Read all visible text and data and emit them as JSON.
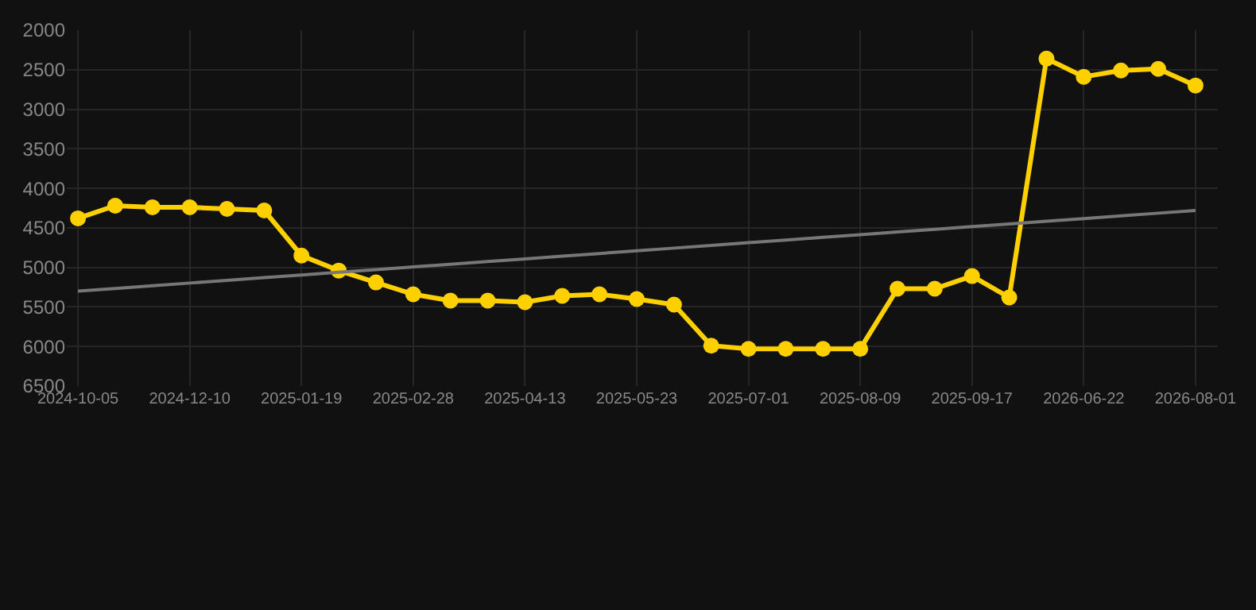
{
  "chart_data": {
    "type": "line",
    "categories": [
      "2024-10-05",
      null,
      null,
      "2024-12-10",
      null,
      null,
      "2025-01-19",
      null,
      null,
      "2025-02-28",
      null,
      null,
      "2025-04-13",
      null,
      null,
      "2025-05-23",
      null,
      null,
      "2025-07-01",
      null,
      null,
      "2025-08-09",
      null,
      null,
      "2025-09-17",
      null,
      null,
      "2026-06-22",
      null,
      null,
      "2026-08-01"
    ],
    "series": [
      {
        "color": "#ffd000",
        "marker": "circle",
        "values": [
          4380,
          4220,
          4240,
          4240,
          4260,
          4280,
          4850,
          5040,
          5190,
          5340,
          5420,
          5420,
          5440,
          5360,
          5340,
          5400,
          5470,
          5990,
          6030,
          6030,
          6030,
          6030,
          5270,
          5270,
          5110,
          5380,
          2360,
          2590,
          2510,
          2490,
          2700
        ]
      },
      {
        "type": "line",
        "color": "#777777",
        "marker": "none",
        "values": [
          5300,
          5266,
          5232,
          5198,
          5164,
          5130,
          5096,
          5062,
          5028,
          4994,
          4960,
          4926,
          4892,
          4858,
          4824,
          4790,
          4756,
          4722,
          4688,
          4654,
          4620,
          4586,
          4552,
          4518,
          4484,
          4450,
          4416,
          4382,
          4348,
          4314,
          4280
        ]
      }
    ],
    "ylim": [
      6500,
      2000
    ],
    "yticks": [
      2000,
      2500,
      3000,
      3500,
      4000,
      4500,
      5000,
      5500,
      6000,
      6500
    ],
    "grid": true
  }
}
